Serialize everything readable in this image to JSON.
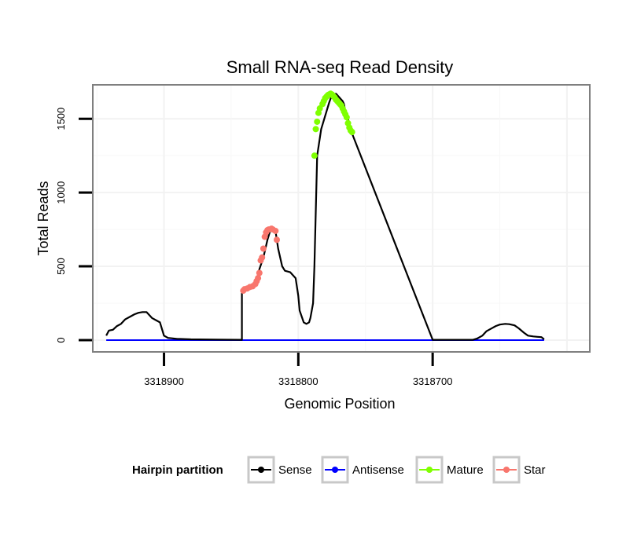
{
  "chart_data": {
    "type": "line",
    "title": "Small RNA-seq Read Density",
    "xlabel": "Genomic Position",
    "ylabel": "Total Reads",
    "x_reversed": true,
    "xlim": [
      3318953,
      3318583
    ],
    "ylim": [
      -80,
      1730
    ],
    "x_ticks": [
      3318900,
      3318800,
      3318700
    ],
    "x_tick_labels": [
      "3318900",
      "3318800",
      "3318700"
    ],
    "y_ticks": [
      0,
      500,
      1000,
      1500
    ],
    "y_tick_labels": [
      "0",
      "500",
      "1000",
      "1500"
    ],
    "grid": true,
    "legend": {
      "title": "Hairpin partition",
      "placement": "bottom",
      "entries": [
        {
          "name": "Sense",
          "color": "#000000"
        },
        {
          "name": "Antisense",
          "color": "#0000ff"
        },
        {
          "name": "Mature",
          "color": "#7fff00"
        },
        {
          "name": "Star",
          "color": "#f8766d"
        }
      ]
    },
    "series": [
      {
        "name": "Sense",
        "color": "#000000",
        "x": [
          3318943,
          3318941,
          3318938,
          3318935,
          3318932,
          3318929,
          3318926,
          3318922,
          3318919,
          3318916,
          3318913,
          3318909,
          3318906,
          3318903,
          3318900,
          3318897,
          3318894,
          3318892,
          3318890,
          3318888,
          3318880,
          3318860,
          3318842,
          3318842,
          3318838,
          3318835,
          3318832,
          3318830,
          3318829,
          3318826,
          3318823,
          3318821,
          3318819,
          3318818,
          3318817,
          3318815,
          3318812,
          3318810,
          3318806,
          3318802,
          3318800,
          3318799,
          3318796,
          3318794,
          3318792,
          3318791,
          3318790,
          3318789,
          3318788,
          3318786,
          3318783,
          3318780,
          3318777,
          3318775,
          3318772,
          3318770,
          3318767,
          3318766,
          3318765,
          3318762,
          3318760,
          3318700,
          3318670,
          3318667,
          3318663,
          3318660,
          3318656,
          3318653,
          3318650,
          3318646,
          3318643,
          3318639,
          3318636,
          3318632,
          3318629,
          3318625,
          3318622,
          3318619,
          3318617
        ],
        "y": [
          30,
          65,
          70,
          95,
          110,
          140,
          155,
          175,
          185,
          190,
          190,
          150,
          135,
          120,
          30,
          15,
          12,
          10,
          8,
          8,
          5,
          3,
          2,
          340,
          350,
          360,
          390,
          440,
          480,
          560,
          680,
          740,
          750,
          750,
          740,
          620,
          500,
          470,
          460,
          420,
          300,
          200,
          120,
          110,
          120,
          150,
          200,
          250,
          500,
          1250,
          1430,
          1520,
          1610,
          1660,
          1670,
          1650,
          1620,
          1600,
          1550,
          1470,
          1400,
          2,
          2,
          10,
          30,
          60,
          80,
          95,
          105,
          110,
          108,
          100,
          80,
          50,
          30,
          25,
          22,
          20,
          5
        ]
      },
      {
        "name": "Antisense",
        "color": "#0000ff",
        "x": [
          3318943,
          3318617
        ],
        "y": [
          0,
          0
        ]
      },
      {
        "name": "Mature",
        "color": "#7fff00",
        "x": [
          3318788,
          3318787,
          3318786,
          3318785,
          3318784,
          3318782,
          3318781,
          3318780,
          3318779,
          3318778,
          3318777,
          3318776,
          3318775,
          3318774,
          3318773,
          3318772,
          3318771,
          3318770,
          3318769,
          3318768,
          3318767,
          3318766,
          3318765,
          3318764,
          3318763,
          3318762,
          3318761,
          3318760
        ],
        "y": [
          1250,
          1430,
          1480,
          1540,
          1570,
          1600,
          1620,
          1640,
          1650,
          1660,
          1665,
          1670,
          1665,
          1655,
          1645,
          1630,
          1620,
          1610,
          1600,
          1590,
          1570,
          1550,
          1530,
          1510,
          1470,
          1440,
          1420,
          1410
        ]
      },
      {
        "name": "Star",
        "color": "#f8766d",
        "x": [
          3318841,
          3318840,
          3318838,
          3318836,
          3318834,
          3318832,
          3318831,
          3318830,
          3318829,
          3318828,
          3318827,
          3318826,
          3318825,
          3318824,
          3318823,
          3318822,
          3318820,
          3318819,
          3318817,
          3318816
        ],
        "y": [
          335,
          345,
          350,
          360,
          365,
          380,
          400,
          420,
          455,
          540,
          560,
          620,
          700,
          730,
          745,
          750,
          755,
          750,
          740,
          680
        ]
      }
    ]
  }
}
